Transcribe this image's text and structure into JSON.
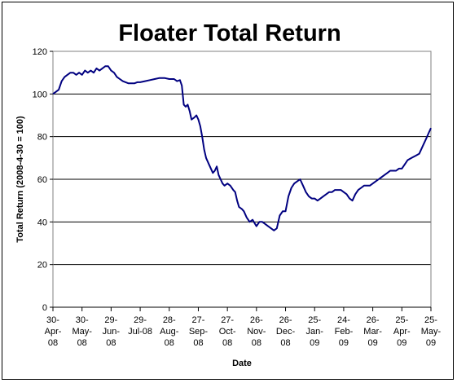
{
  "chart_data": {
    "type": "line",
    "title": "Floater Total Return",
    "xlabel": "Date",
    "ylabel": "Total Return (2008-4-30 = 100)",
    "ylim": [
      0,
      120
    ],
    "yticks": [
      0,
      20,
      40,
      60,
      80,
      100,
      120
    ],
    "grid": "horizontal major gridlines",
    "legend": "none",
    "line_color": "#000080",
    "x_tick_labels": [
      [
        "30-",
        "Apr-",
        "08"
      ],
      [
        "30-",
        "May-",
        "08"
      ],
      [
        "29-",
        "Jun-",
        "08"
      ],
      [
        "29-",
        "Jul-08"
      ],
      [
        "28-",
        "Aug-",
        "08"
      ],
      [
        "27-",
        "Sep-",
        "08"
      ],
      [
        "27-",
        "Oct-",
        "08"
      ],
      [
        "26-",
        "Nov-",
        "08"
      ],
      [
        "26-",
        "Dec-",
        "08"
      ],
      [
        "25-",
        "Jan-",
        "09"
      ],
      [
        "24-",
        "Feb-",
        "09"
      ],
      [
        "26-",
        "Mar-",
        "09"
      ],
      [
        "25-",
        "Apr-",
        "09"
      ],
      [
        "25-",
        "May-",
        "09"
      ]
    ],
    "x_tick_dates": [
      "2008-04-30",
      "2008-05-30",
      "2008-06-29",
      "2008-07-29",
      "2008-08-28",
      "2008-09-27",
      "2008-10-27",
      "2008-11-26",
      "2008-12-26",
      "2009-01-25",
      "2009-02-24",
      "2009-03-26",
      "2009-04-25",
      "2009-05-25"
    ],
    "series": [
      {
        "points": [
          [
            "2008-04-30",
            100
          ],
          [
            "2008-05-03",
            101
          ],
          [
            "2008-05-06",
            102
          ],
          [
            "2008-05-09",
            106
          ],
          [
            "2008-05-12",
            108
          ],
          [
            "2008-05-15",
            109
          ],
          [
            "2008-05-18",
            110
          ],
          [
            "2008-05-21",
            110
          ],
          [
            "2008-05-24",
            109
          ],
          [
            "2008-05-27",
            110
          ],
          [
            "2008-05-30",
            109
          ],
          [
            "2008-06-02",
            111
          ],
          [
            "2008-06-05",
            110
          ],
          [
            "2008-06-08",
            111
          ],
          [
            "2008-06-11",
            110
          ],
          [
            "2008-06-14",
            112
          ],
          [
            "2008-06-17",
            111
          ],
          [
            "2008-06-20",
            112
          ],
          [
            "2008-06-23",
            113
          ],
          [
            "2008-06-26",
            113
          ],
          [
            "2008-06-29",
            111
          ],
          [
            "2008-07-02",
            110
          ],
          [
            "2008-07-05",
            108
          ],
          [
            "2008-07-08",
            107
          ],
          [
            "2008-07-11",
            106
          ],
          [
            "2008-07-14",
            105.5
          ],
          [
            "2008-07-17",
            105
          ],
          [
            "2008-07-20",
            105
          ],
          [
            "2008-07-23",
            105
          ],
          [
            "2008-07-26",
            105.5
          ],
          [
            "2008-07-29",
            105.5
          ],
          [
            "2008-08-03",
            106
          ],
          [
            "2008-08-08",
            106.5
          ],
          [
            "2008-08-13",
            107
          ],
          [
            "2008-08-18",
            107.5
          ],
          [
            "2008-08-23",
            107.5
          ],
          [
            "2008-08-28",
            107
          ],
          [
            "2008-09-02",
            107
          ],
          [
            "2008-09-05",
            106
          ],
          [
            "2008-09-08",
            106.5
          ],
          [
            "2008-09-10",
            104
          ],
          [
            "2008-09-12",
            95
          ],
          [
            "2008-09-14",
            94
          ],
          [
            "2008-09-16",
            95
          ],
          [
            "2008-09-18",
            92
          ],
          [
            "2008-09-20",
            88
          ],
          [
            "2008-09-23",
            89
          ],
          [
            "2008-09-25",
            90
          ],
          [
            "2008-09-27",
            88
          ],
          [
            "2008-09-29",
            85
          ],
          [
            "2008-10-01",
            80
          ],
          [
            "2008-10-03",
            74
          ],
          [
            "2008-10-05",
            70
          ],
          [
            "2008-10-08",
            67
          ],
          [
            "2008-10-10",
            65
          ],
          [
            "2008-10-12",
            63
          ],
          [
            "2008-10-14",
            64
          ],
          [
            "2008-10-16",
            66
          ],
          [
            "2008-10-18",
            62
          ],
          [
            "2008-10-20",
            60
          ],
          [
            "2008-10-22",
            58
          ],
          [
            "2008-10-24",
            57
          ],
          [
            "2008-10-27",
            58
          ],
          [
            "2008-10-30",
            57
          ],
          [
            "2008-11-02",
            55
          ],
          [
            "2008-11-04",
            54
          ],
          [
            "2008-11-06",
            50
          ],
          [
            "2008-11-08",
            47
          ],
          [
            "2008-11-11",
            46
          ],
          [
            "2008-11-13",
            45
          ],
          [
            "2008-11-16",
            42
          ],
          [
            "2008-11-19",
            40
          ],
          [
            "2008-11-22",
            41
          ],
          [
            "2008-11-26",
            38
          ],
          [
            "2008-11-29",
            40
          ],
          [
            "2008-12-02",
            40
          ],
          [
            "2008-12-05",
            39
          ],
          [
            "2008-12-08",
            38
          ],
          [
            "2008-12-11",
            37
          ],
          [
            "2008-12-14",
            36
          ],
          [
            "2008-12-17",
            37
          ],
          [
            "2008-12-20",
            43
          ],
          [
            "2008-12-23",
            45
          ],
          [
            "2008-12-26",
            45
          ],
          [
            "2008-12-29",
            52
          ],
          [
            "2009-01-01",
            56
          ],
          [
            "2009-01-04",
            58
          ],
          [
            "2009-01-07",
            59
          ],
          [
            "2009-01-10",
            60
          ],
          [
            "2009-01-13",
            57
          ],
          [
            "2009-01-16",
            54
          ],
          [
            "2009-01-19",
            52
          ],
          [
            "2009-01-22",
            51
          ],
          [
            "2009-01-25",
            51
          ],
          [
            "2009-01-28",
            50
          ],
          [
            "2009-01-31",
            51
          ],
          [
            "2009-02-03",
            52
          ],
          [
            "2009-02-06",
            53
          ],
          [
            "2009-02-09",
            54
          ],
          [
            "2009-02-12",
            54
          ],
          [
            "2009-02-15",
            55
          ],
          [
            "2009-02-18",
            55
          ],
          [
            "2009-02-21",
            55
          ],
          [
            "2009-02-24",
            54
          ],
          [
            "2009-02-27",
            53
          ],
          [
            "2009-03-02",
            51
          ],
          [
            "2009-03-05",
            50
          ],
          [
            "2009-03-08",
            53
          ],
          [
            "2009-03-11",
            55
          ],
          [
            "2009-03-14",
            56
          ],
          [
            "2009-03-17",
            57
          ],
          [
            "2009-03-20",
            57
          ],
          [
            "2009-03-23",
            57
          ],
          [
            "2009-03-26",
            58
          ],
          [
            "2009-03-29",
            59
          ],
          [
            "2009-04-01",
            60
          ],
          [
            "2009-04-04",
            61
          ],
          [
            "2009-04-07",
            62
          ],
          [
            "2009-04-10",
            63
          ],
          [
            "2009-04-13",
            64
          ],
          [
            "2009-04-16",
            64
          ],
          [
            "2009-04-19",
            64
          ],
          [
            "2009-04-22",
            65
          ],
          [
            "2009-04-25",
            65
          ],
          [
            "2009-04-28",
            67
          ],
          [
            "2009-05-01",
            69
          ],
          [
            "2009-05-05",
            70
          ],
          [
            "2009-05-09",
            71
          ],
          [
            "2009-05-13",
            72
          ],
          [
            "2009-05-17",
            76
          ],
          [
            "2009-05-20",
            79
          ],
          [
            "2009-05-23",
            82
          ],
          [
            "2009-05-25",
            84
          ]
        ]
      }
    ]
  }
}
